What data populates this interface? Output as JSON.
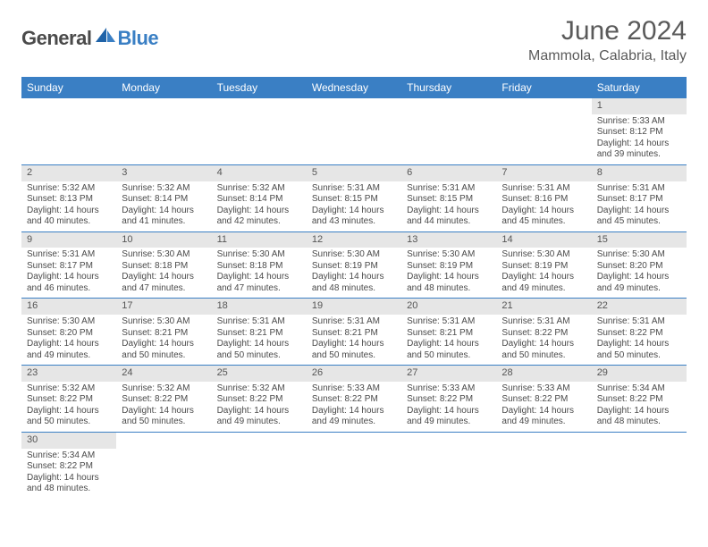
{
  "logo": {
    "general": "General",
    "blue": "Blue"
  },
  "title": "June 2024",
  "location": "Mammola, Calabria, Italy",
  "colors": {
    "header_bg": "#3a7fc4",
    "header_text": "#ffffff",
    "daynum_bg": "#e6e6e6",
    "row_border": "#3a7fc4",
    "body_text": "#4a4a4a"
  },
  "day_headers": [
    "Sunday",
    "Monday",
    "Tuesday",
    "Wednesday",
    "Thursday",
    "Friday",
    "Saturday"
  ],
  "weeks": [
    [
      null,
      null,
      null,
      null,
      null,
      null,
      {
        "n": "1",
        "sr": "5:33 AM",
        "ss": "8:12 PM",
        "dl": "14 hours and 39 minutes."
      }
    ],
    [
      {
        "n": "2",
        "sr": "5:32 AM",
        "ss": "8:13 PM",
        "dl": "14 hours and 40 minutes."
      },
      {
        "n": "3",
        "sr": "5:32 AM",
        "ss": "8:14 PM",
        "dl": "14 hours and 41 minutes."
      },
      {
        "n": "4",
        "sr": "5:32 AM",
        "ss": "8:14 PM",
        "dl": "14 hours and 42 minutes."
      },
      {
        "n": "5",
        "sr": "5:31 AM",
        "ss": "8:15 PM",
        "dl": "14 hours and 43 minutes."
      },
      {
        "n": "6",
        "sr": "5:31 AM",
        "ss": "8:15 PM",
        "dl": "14 hours and 44 minutes."
      },
      {
        "n": "7",
        "sr": "5:31 AM",
        "ss": "8:16 PM",
        "dl": "14 hours and 45 minutes."
      },
      {
        "n": "8",
        "sr": "5:31 AM",
        "ss": "8:17 PM",
        "dl": "14 hours and 45 minutes."
      }
    ],
    [
      {
        "n": "9",
        "sr": "5:31 AM",
        "ss": "8:17 PM",
        "dl": "14 hours and 46 minutes."
      },
      {
        "n": "10",
        "sr": "5:30 AM",
        "ss": "8:18 PM",
        "dl": "14 hours and 47 minutes."
      },
      {
        "n": "11",
        "sr": "5:30 AM",
        "ss": "8:18 PM",
        "dl": "14 hours and 47 minutes."
      },
      {
        "n": "12",
        "sr": "5:30 AM",
        "ss": "8:19 PM",
        "dl": "14 hours and 48 minutes."
      },
      {
        "n": "13",
        "sr": "5:30 AM",
        "ss": "8:19 PM",
        "dl": "14 hours and 48 minutes."
      },
      {
        "n": "14",
        "sr": "5:30 AM",
        "ss": "8:19 PM",
        "dl": "14 hours and 49 minutes."
      },
      {
        "n": "15",
        "sr": "5:30 AM",
        "ss": "8:20 PM",
        "dl": "14 hours and 49 minutes."
      }
    ],
    [
      {
        "n": "16",
        "sr": "5:30 AM",
        "ss": "8:20 PM",
        "dl": "14 hours and 49 minutes."
      },
      {
        "n": "17",
        "sr": "5:30 AM",
        "ss": "8:21 PM",
        "dl": "14 hours and 50 minutes."
      },
      {
        "n": "18",
        "sr": "5:31 AM",
        "ss": "8:21 PM",
        "dl": "14 hours and 50 minutes."
      },
      {
        "n": "19",
        "sr": "5:31 AM",
        "ss": "8:21 PM",
        "dl": "14 hours and 50 minutes."
      },
      {
        "n": "20",
        "sr": "5:31 AM",
        "ss": "8:21 PM",
        "dl": "14 hours and 50 minutes."
      },
      {
        "n": "21",
        "sr": "5:31 AM",
        "ss": "8:22 PM",
        "dl": "14 hours and 50 minutes."
      },
      {
        "n": "22",
        "sr": "5:31 AM",
        "ss": "8:22 PM",
        "dl": "14 hours and 50 minutes."
      }
    ],
    [
      {
        "n": "23",
        "sr": "5:32 AM",
        "ss": "8:22 PM",
        "dl": "14 hours and 50 minutes."
      },
      {
        "n": "24",
        "sr": "5:32 AM",
        "ss": "8:22 PM",
        "dl": "14 hours and 50 minutes."
      },
      {
        "n": "25",
        "sr": "5:32 AM",
        "ss": "8:22 PM",
        "dl": "14 hours and 49 minutes."
      },
      {
        "n": "26",
        "sr": "5:33 AM",
        "ss": "8:22 PM",
        "dl": "14 hours and 49 minutes."
      },
      {
        "n": "27",
        "sr": "5:33 AM",
        "ss": "8:22 PM",
        "dl": "14 hours and 49 minutes."
      },
      {
        "n": "28",
        "sr": "5:33 AM",
        "ss": "8:22 PM",
        "dl": "14 hours and 49 minutes."
      },
      {
        "n": "29",
        "sr": "5:34 AM",
        "ss": "8:22 PM",
        "dl": "14 hours and 48 minutes."
      }
    ],
    [
      {
        "n": "30",
        "sr": "5:34 AM",
        "ss": "8:22 PM",
        "dl": "14 hours and 48 minutes."
      },
      null,
      null,
      null,
      null,
      null,
      null
    ]
  ],
  "labels": {
    "sunrise": "Sunrise: ",
    "sunset": "Sunset: ",
    "daylight": "Daylight: "
  }
}
